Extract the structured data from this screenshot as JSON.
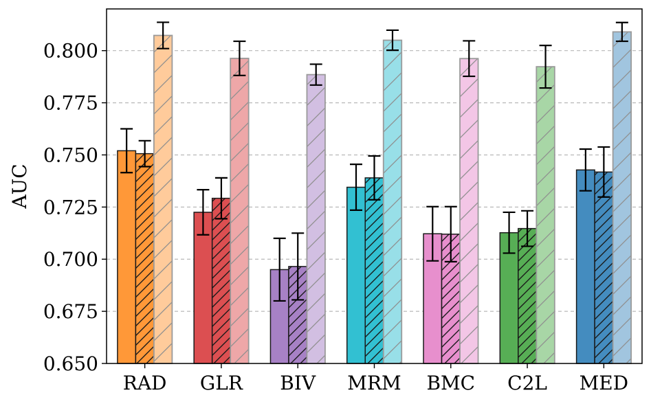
{
  "chart_data": {
    "type": "bar",
    "ylabel": "AUC",
    "ylim": [
      0.65,
      0.82
    ],
    "yticks": [
      "0.650",
      "0.675",
      "0.700",
      "0.725",
      "0.750",
      "0.775",
      "0.800"
    ],
    "ytick_values": [
      0.65,
      0.675,
      0.7,
      0.725,
      0.75,
      0.775,
      0.8
    ],
    "grid": "y-dashed",
    "categories": [
      "RAD",
      "GLR",
      "BIV",
      "MRM",
      "BMC",
      "C2L",
      "MED"
    ],
    "colors": [
      "#ff9838",
      "#dc4f51",
      "#a781c5",
      "#32c0d2",
      "#e78fcd",
      "#57ae55",
      "#448cbf"
    ],
    "light_colors": [
      "#ffcb9b",
      "#eea7a8",
      "#d2bfe2",
      "#98dfe8",
      "#f3c6e6",
      "#a8d6a6",
      "#a1c5df"
    ],
    "series": [
      {
        "values": [
          0.752,
          0.7225,
          0.695,
          0.7345,
          0.7122,
          0.7127,
          0.7428
        ],
        "errors": [
          0.0105,
          0.0108,
          0.015,
          0.011,
          0.013,
          0.0098,
          0.01
        ],
        "style": "solid"
      },
      {
        "values": [
          0.7506,
          0.7292,
          0.6965,
          0.739,
          0.712,
          0.7147,
          0.7418
        ],
        "errors": [
          0.0062,
          0.0098,
          0.016,
          0.0105,
          0.0132,
          0.0085,
          0.012
        ],
        "style": "hatched"
      },
      {
        "values": [
          0.8073,
          0.7963,
          0.7885,
          0.805,
          0.7962,
          0.7923,
          0.809
        ],
        "errors": [
          0.0063,
          0.0082,
          0.005,
          0.0048,
          0.0085,
          0.0102,
          0.0045
        ],
        "style": "light-hatched"
      }
    ]
  }
}
